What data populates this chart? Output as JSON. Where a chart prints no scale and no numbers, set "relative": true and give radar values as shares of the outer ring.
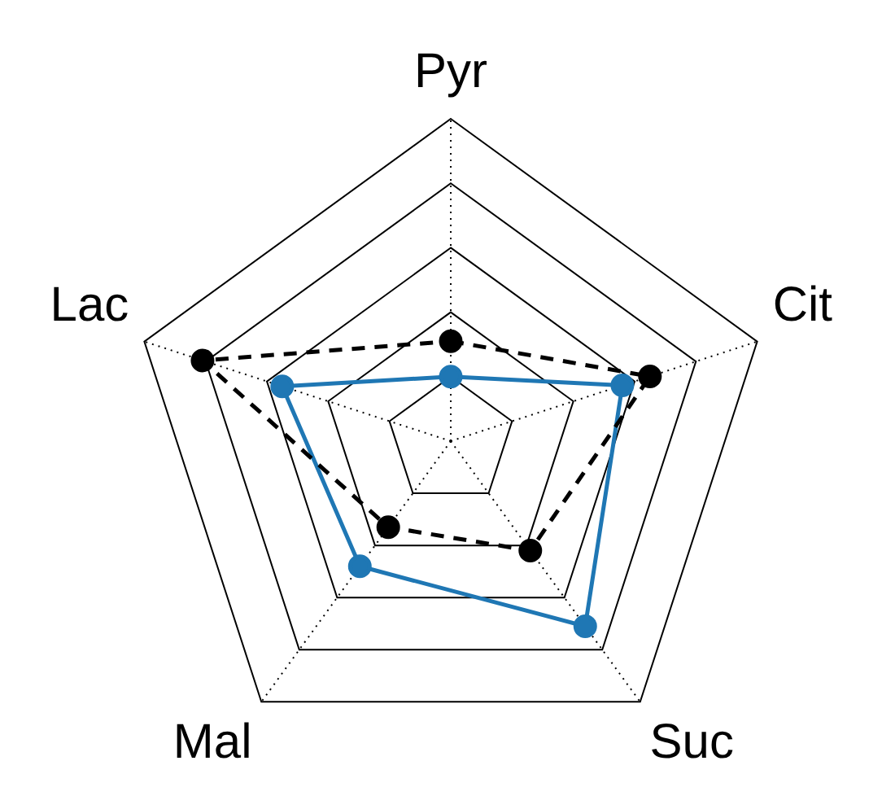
{
  "chart_data": {
    "type": "radar",
    "relative": true,
    "categories": [
      "Pyr",
      "Cit",
      "Suc",
      "Mal",
      "Lac"
    ],
    "grid": true,
    "legend": false,
    "marker": "circle",
    "series": [
      {
        "color": "#000000",
        "line_style": "dashed",
        "values": [
          0.31,
          0.65,
          0.42,
          0.33,
          0.81
        ]
      },
      {
        "color": "#1f77b4",
        "line_style": "solid",
        "values": [
          0.2,
          0.56,
          0.71,
          0.48,
          0.55
        ]
      }
    ]
  }
}
